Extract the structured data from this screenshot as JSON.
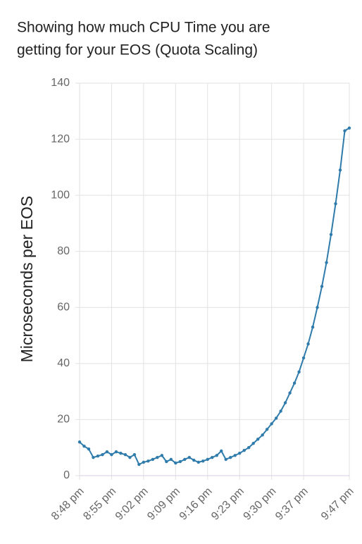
{
  "chart_data": {
    "type": "line",
    "title": [
      "Showing how much CPU Time you are",
      "getting for your EOS (Quota Scaling)"
    ],
    "y_label": "Microseconds per EOS",
    "categories": [
      "8:48 pm",
      null,
      null,
      null,
      null,
      null,
      null,
      "8:55 pm",
      null,
      null,
      null,
      null,
      null,
      null,
      "9:02 pm",
      null,
      null,
      null,
      null,
      null,
      null,
      "9:09 pm",
      null,
      null,
      null,
      null,
      null,
      null,
      "9:16 pm",
      null,
      null,
      null,
      null,
      null,
      null,
      "9:23 pm",
      null,
      null,
      null,
      null,
      null,
      null,
      "9:30 pm",
      null,
      null,
      null,
      null,
      null,
      null,
      "9:37 pm",
      null,
      null,
      null,
      null,
      null,
      null,
      null,
      null,
      null,
      "9:47 pm"
    ],
    "series": [
      {
        "color": "#2f7bab",
        "values": [
          12,
          10.5,
          9.5,
          6.5,
          7,
          7.5,
          8.5,
          7.5,
          8.5,
          8,
          7.5,
          6.5,
          7.5,
          4,
          4.8,
          5.2,
          5.8,
          6.5,
          7.2,
          5,
          5.8,
          4.5,
          5,
          5.8,
          6.5,
          5.5,
          4.8,
          5.2,
          5.8,
          6.5,
          7.2,
          8.8,
          5.8,
          6.5,
          7.2,
          8,
          9,
          10,
          11.5,
          13,
          14.5,
          16.5,
          18.5,
          20.5,
          23,
          26,
          29.5,
          33,
          37,
          42,
          47,
          53,
          60,
          67.5,
          76,
          86,
          97,
          109,
          123,
          124
        ]
      }
    ],
    "ylim": [
      0,
      140
    ],
    "yticks": [
      0,
      20,
      40,
      60,
      80,
      100,
      120,
      140
    ],
    "grid": true
  }
}
